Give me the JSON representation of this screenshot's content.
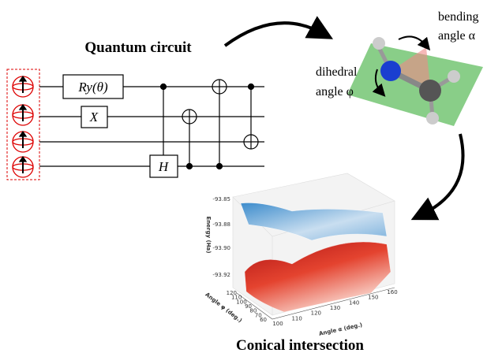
{
  "header": {
    "title": "Quantum circuit"
  },
  "circuit": {
    "gates": [
      "Ry(θ)",
      "X",
      "H"
    ]
  },
  "molecule": {
    "bending": [
      "bending",
      "angle α"
    ],
    "dihedral": [
      "dihedral",
      "angle φ"
    ]
  },
  "plot": {
    "z_label": "Energy (Ha)",
    "z_ticks": [
      "-93.85",
      "-93.88",
      "-93.90",
      "-93.92"
    ],
    "phi_label": "Angle φ (deg.)",
    "phi_ticks": [
      "120",
      "110",
      "100",
      "90",
      "80",
      "70",
      "60"
    ],
    "alpha_label": "Angle α (deg.)",
    "alpha_ticks": [
      "100",
      "110",
      "120",
      "130",
      "140",
      "150",
      "160"
    ]
  },
  "footer": {
    "title": "Conical intersection"
  }
}
